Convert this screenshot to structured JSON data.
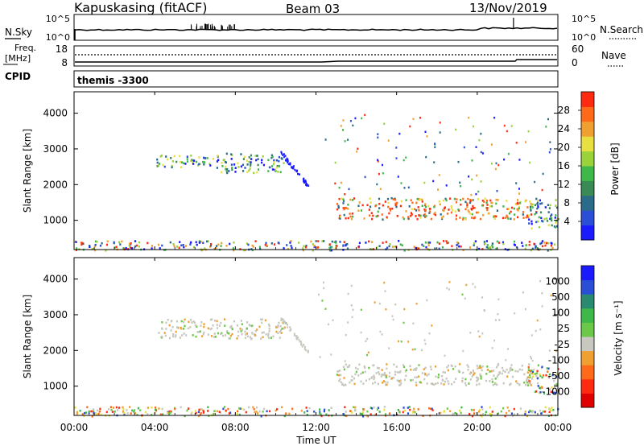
{
  "header": {
    "station": "Kapuskasing (fitACF)",
    "beam": "Beam 03",
    "date": "13/Nov/2019"
  },
  "noise_panel": {
    "left_label": "N.Sky",
    "right_label": "N.Search",
    "left_ticks": [
      "10^5",
      "10^0"
    ],
    "right_ticks": [
      "10^5",
      "10^0"
    ]
  },
  "freq_panel": {
    "left_label_1": "Freq.",
    "left_label_2": "[MHz]",
    "right_label": "Nave",
    "left_ticks": [
      "18",
      "8"
    ],
    "right_ticks": [
      "60",
      "0"
    ]
  },
  "cpid_panel": {
    "label": "CPID",
    "value": "themis -3300"
  },
  "x_axis": {
    "title": "Time UT",
    "ticks": [
      "00:00",
      "04:00",
      "08:00",
      "12:00",
      "16:00",
      "20:00",
      "00:00"
    ]
  },
  "colors": {
    "power_scale": [
      "#1a1aff",
      "#2a4fd6",
      "#2a6b8a",
      "#3a8a55",
      "#3fb84a",
      "#9ad23a",
      "#e8e040",
      "#f0a030",
      "#ff6a1a",
      "#ff2a10"
    ],
    "velocity_scale": [
      "#e00000",
      "#ff2a10",
      "#ff6a1a",
      "#f0a030",
      "#c8c8c0",
      "#6cc848",
      "#3fb84a",
      "#2a8a70",
      "#2a4fd6",
      "#1a1aff"
    ]
  },
  "chart_data": [
    {
      "type": "heatmap",
      "title": "",
      "xlabel": "",
      "ylabel": "Slant Range [km]",
      "ylim": [
        180,
        4600
      ],
      "y_ticks": [
        "1000",
        "2000",
        "3000",
        "4000"
      ],
      "colorbar_label": "Power [dB]",
      "colorbar_ticks": [
        "4",
        "8",
        "12",
        "16",
        "20",
        "24",
        "28"
      ],
      "colorbar_range": [
        0,
        32
      ],
      "regions": [
        {
          "t_start": 4.0,
          "t_end": 7.0,
          "range_min": 2500,
          "range_max": 2850,
          "level": "medium"
        },
        {
          "t_start": 7.0,
          "t_end": 10.5,
          "range_min": 2350,
          "range_max": 2900,
          "level": "medium"
        },
        {
          "t_start": 13.0,
          "t_end": 23.0,
          "range_min": 1050,
          "range_max": 1650,
          "level": "high"
        },
        {
          "t_start": 22.5,
          "t_end": 24.0,
          "range_min": 800,
          "range_max": 1600,
          "level": "medium"
        },
        {
          "t_start": 0.0,
          "t_end": 24.0,
          "range_min": 180,
          "range_max": 450,
          "level": "low"
        }
      ]
    },
    {
      "type": "heatmap",
      "title": "",
      "xlabel": "Time UT",
      "ylabel": "Slant Range [km]",
      "ylim": [
        180,
        4600
      ],
      "y_ticks": [
        "1000",
        "2000",
        "3000",
        "4000"
      ],
      "colorbar_label": "Velocity [m s⁻¹]",
      "colorbar_ticks": [
        "1000",
        "500",
        "100",
        "25",
        "-25",
        "-100",
        "-500",
        "-1000"
      ],
      "regions": [
        {
          "t_start": 4.0,
          "t_end": 10.5,
          "range_min": 2350,
          "range_max": 2900,
          "level": "ground"
        },
        {
          "t_start": 13.0,
          "t_end": 23.0,
          "range_min": 1050,
          "range_max": 1650,
          "level": "ground"
        },
        {
          "t_start": 22.5,
          "t_end": 24.0,
          "range_min": 800,
          "range_max": 1600,
          "level": "mixed"
        },
        {
          "t_start": 0.0,
          "t_end": 24.0,
          "range_min": 180,
          "range_max": 450,
          "level": "mixed"
        }
      ]
    }
  ]
}
